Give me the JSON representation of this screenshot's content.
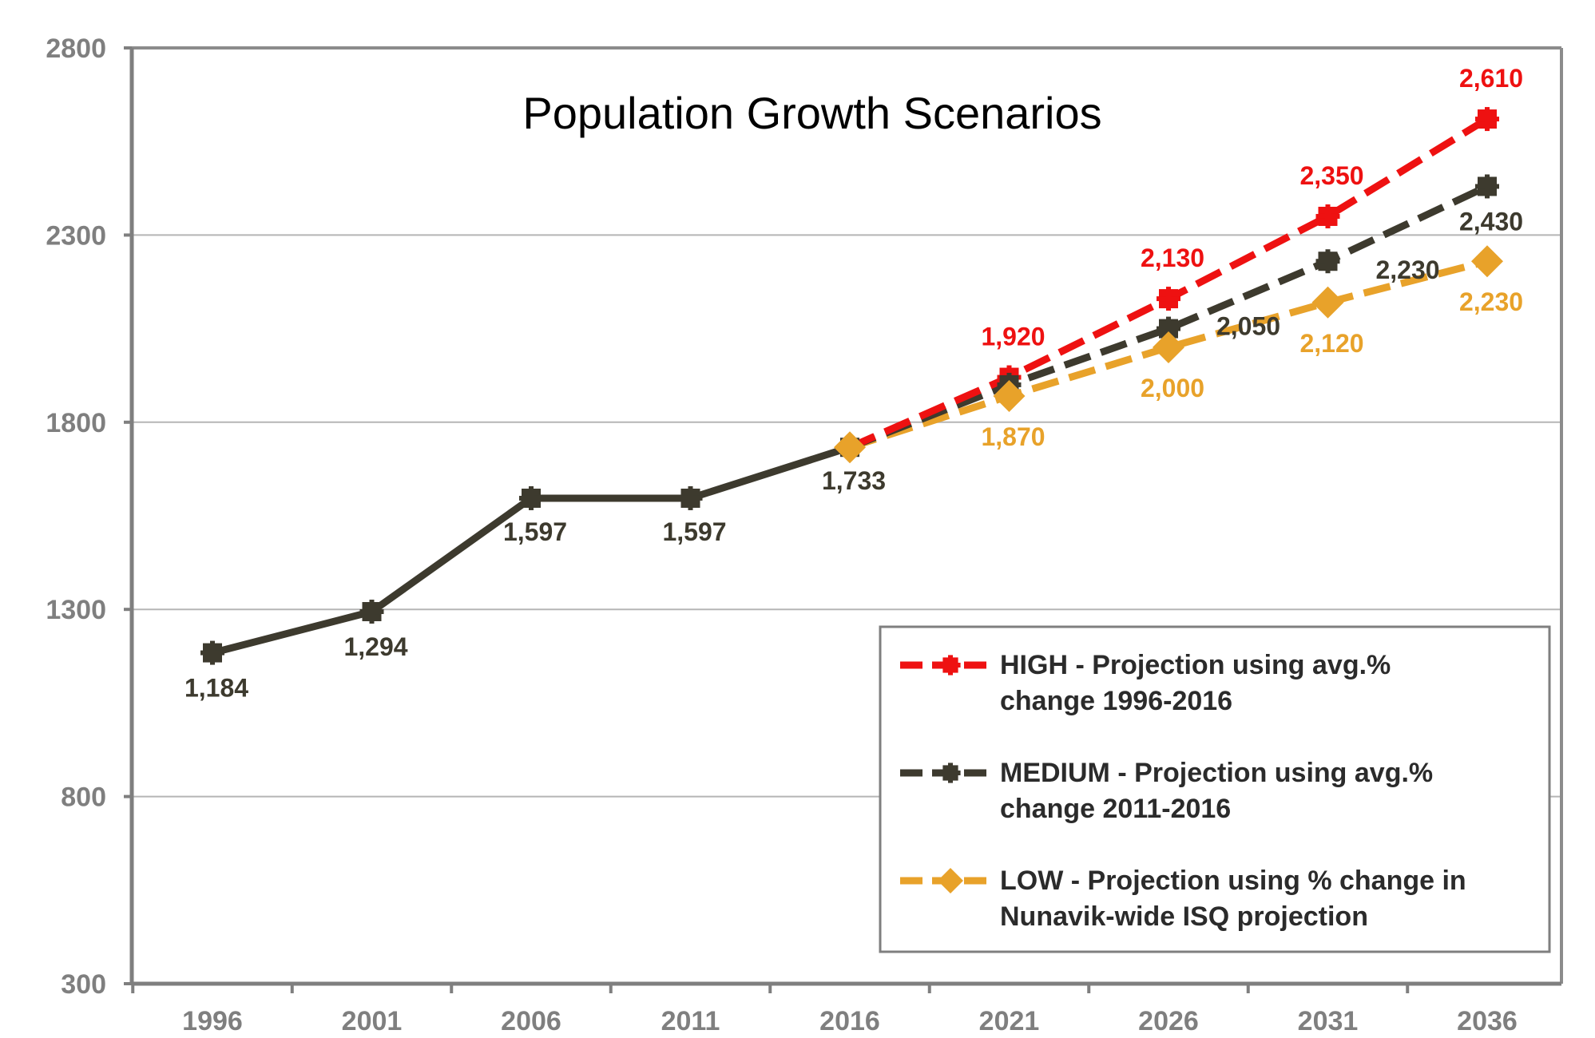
{
  "chart_data": {
    "type": "line",
    "title": "Population Growth Scenarios",
    "xlabel": "",
    "ylabel": "",
    "x": [
      1996,
      2001,
      2006,
      2011,
      2016,
      2021,
      2026,
      2031,
      2036
    ],
    "x_tick_labels": [
      "1996",
      "2001",
      "2006",
      "2011",
      "2016",
      "2021",
      "2026",
      "2031",
      "2036"
    ],
    "y_ticks": [
      300,
      800,
      1300,
      1800,
      2300,
      2800
    ],
    "y_tick_labels": [
      "300",
      "800",
      "1300",
      "1800",
      "2300",
      "2800"
    ],
    "ylim": [
      300,
      2800
    ],
    "grid": true,
    "legend_position": "bottom-right",
    "series": [
      {
        "key": "historical",
        "x": [
          1996,
          2001,
          2006,
          2011,
          2016
        ],
        "values": [
          1184,
          1294,
          1597,
          1597,
          1733
        ],
        "labels": [
          "1,184",
          "1,294",
          "1,597",
          "1,597",
          "1,733"
        ],
        "color": "#3d3a2e",
        "style": "solid",
        "marker": "square"
      },
      {
        "key": "high",
        "name": "HIGH - Projection using avg.% change 1996-2016",
        "legend_lines": [
          "HIGH - Projection using avg.%",
          "change 1996-2016"
        ],
        "x": [
          2016,
          2021,
          2026,
          2031,
          2036
        ],
        "values": [
          1733,
          1920,
          2130,
          2350,
          2610
        ],
        "labels": [
          "",
          "1,920",
          "2,130",
          "2,350",
          "2,610"
        ],
        "color": "#ee1111",
        "style": "dashed",
        "marker": "square"
      },
      {
        "key": "medium",
        "name": "MEDIUM - Projection using avg.% change 2011-2016",
        "legend_lines": [
          "MEDIUM - Projection using avg.%",
          "change 2011-2016"
        ],
        "x": [
          2016,
          2021,
          2026,
          2031,
          2036
        ],
        "values": [
          1733,
          1900,
          2050,
          2230,
          2430
        ],
        "labels": [
          "",
          "",
          "2,050",
          "2,230",
          "2,430"
        ],
        "color": "#3d3a2e",
        "style": "dashed",
        "marker": "square"
      },
      {
        "key": "low",
        "name": "LOW - Projection using % change in Nunavik-wide ISQ projection",
        "legend_lines": [
          "LOW - Projection using % change in",
          "Nunavik-wide ISQ projection"
        ],
        "x": [
          2016,
          2021,
          2026,
          2031,
          2036
        ],
        "values": [
          1733,
          1870,
          2000,
          2120,
          2230
        ],
        "labels": [
          "",
          "1,870",
          "2,000",
          "2,120",
          "2,230"
        ],
        "color": "#e8a22a",
        "style": "dashed",
        "marker": "diamond"
      }
    ]
  }
}
